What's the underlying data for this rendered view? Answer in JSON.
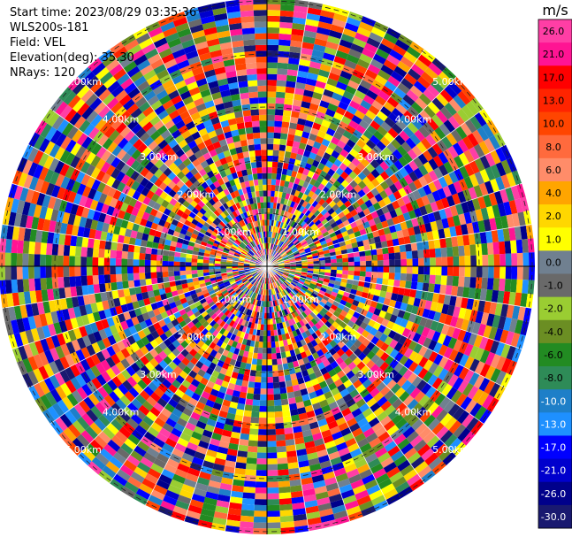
{
  "header": {
    "start_time_label": "Start time:",
    "start_time": "2023/08/29 03:35:36",
    "instrument": "WLS200s-181",
    "field_label": "Field:",
    "field": "VEL",
    "elevation_label": "Elevation(deg):",
    "elevation": "35.30",
    "nrays_label": "NRays:",
    "nrays": "120"
  },
  "colorbar": {
    "unit": "m/s",
    "ticks": [
      "26.0",
      "21.0",
      "17.0",
      "13.0",
      "10.0",
      "8.0",
      "6.0",
      "4.0",
      "2.0",
      "1.0",
      "0.0",
      "-1.0",
      "-2.0",
      "-4.0",
      "-6.0",
      "-8.0",
      "-10.0",
      "-13.0",
      "-17.0",
      "-21.0",
      "-26.0",
      "-30.0"
    ],
    "colors": [
      "#ff3ea5",
      "#ff1493",
      "#ff0000",
      "#ff2400",
      "#ff4500",
      "#ff6a3d",
      "#ff8c69",
      "#ffa500",
      "#ffd700",
      "#ffff00",
      "#708090",
      "#696969",
      "#9acd32",
      "#6b8e23",
      "#228b22",
      "#2e8b57",
      "#1e7fc8",
      "#1e90ff",
      "#0000ff",
      "#0000cd",
      "#00008b",
      "#191970"
    ]
  },
  "chart_data": {
    "type": "heatmap",
    "projection": "polar-ppi",
    "field": "VEL",
    "nrays": 120,
    "range_ring_labels": [
      "1.00km",
      "2.00km",
      "3.00km",
      "4.00km",
      "5.00km"
    ],
    "color_scale_unit": "m/s",
    "value_range": [
      -30.0,
      26.0
    ]
  }
}
